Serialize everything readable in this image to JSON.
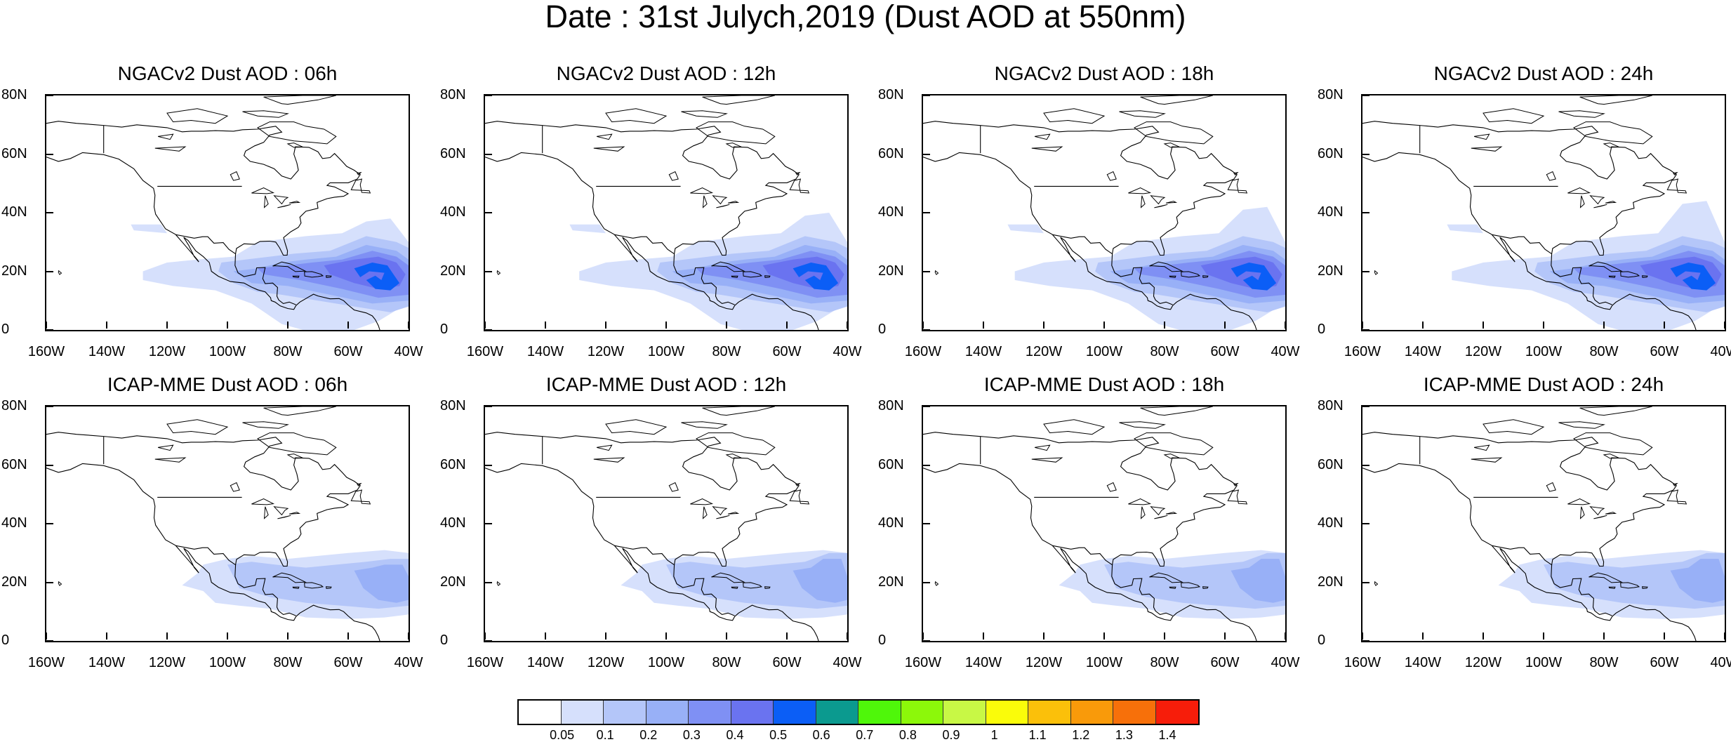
{
  "figure": {
    "title": "Date : 31st Julych,2019 (Dust AOD at 550nm)",
    "y_tick_labels": [
      "80N",
      "60N",
      "40N",
      "20N",
      "0"
    ],
    "x_tick_labels": [
      "160W",
      "140W",
      "120W",
      "100W",
      "80W",
      "60W",
      "40W"
    ]
  },
  "panels": [
    {
      "title": "NGACv2 Dust AOD : 06h",
      "model": "NGACv2",
      "lead_hour": 6
    },
    {
      "title": "NGACv2 Dust AOD : 12h",
      "model": "NGACv2",
      "lead_hour": 12
    },
    {
      "title": "NGACv2 Dust AOD : 18h",
      "model": "NGACv2",
      "lead_hour": 18
    },
    {
      "title": "NGACv2 Dust AOD : 24h",
      "model": "NGACv2",
      "lead_hour": 24
    },
    {
      "title": "ICAP-MME Dust AOD : 06h",
      "model": "ICAP-MME",
      "lead_hour": 6
    },
    {
      "title": "ICAP-MME Dust AOD : 12h",
      "model": "ICAP-MME",
      "lead_hour": 12
    },
    {
      "title": "ICAP-MME Dust AOD : 18h",
      "model": "ICAP-MME",
      "lead_hour": 18
    },
    {
      "title": "ICAP-MME Dust AOD : 24h",
      "model": "ICAP-MME",
      "lead_hour": 24
    }
  ],
  "colorbar": {
    "labels": [
      "0.05",
      "0.1",
      "0.2",
      "0.3",
      "0.4",
      "0.5",
      "0.6",
      "0.7",
      "0.8",
      "0.9",
      "1",
      "1.1",
      "1.2",
      "1.3",
      "1.4"
    ],
    "colors": [
      "#ffffff",
      "#d6e0fc",
      "#b4c6f9",
      "#98b0f7",
      "#7f90f4",
      "#6a73f0",
      "#0b5ef6",
      "#0b9a8f",
      "#4ff70a",
      "#8cf80a",
      "#c8f845",
      "#fafc0a",
      "#fbc00a",
      "#f99a0a",
      "#f7700a",
      "#f71d0a"
    ]
  },
  "chart_data": {
    "type": "heatmap",
    "variable": "Dust AOD at 550nm",
    "date": "31st Julych,2019",
    "lon_range": [
      "160W",
      "40W"
    ],
    "lat_range": [
      "0",
      "80N"
    ],
    "plumes": {
      "NGACv2": [
        {
          "lead_hour": 6,
          "cells": [
            {
              "lon": -90,
              "lat": 20,
              "aod": 0.25
            },
            {
              "lon": -75,
              "lat": 21,
              "aod": 0.45
            },
            {
              "lon": -60,
              "lat": 19,
              "aod": 0.5
            },
            {
              "lon": -48,
              "lat": 17,
              "aod": 0.6
            }
          ]
        },
        {
          "lead_hour": 12,
          "cells": [
            {
              "lon": -90,
              "lat": 20,
              "aod": 0.25
            },
            {
              "lon": -75,
              "lat": 21,
              "aod": 0.45
            },
            {
              "lon": -58,
              "lat": 20,
              "aod": 0.5
            },
            {
              "lon": -50,
              "lat": 19,
              "aod": 0.6
            }
          ]
        },
        {
          "lead_hour": 18,
          "cells": [
            {
              "lon": -90,
              "lat": 22,
              "aod": 0.25
            },
            {
              "lon": -75,
              "lat": 23,
              "aod": 0.45
            },
            {
              "lon": -58,
              "lat": 21,
              "aod": 0.5
            },
            {
              "lon": -52,
              "lat": 20,
              "aod": 0.6
            }
          ]
        },
        {
          "lead_hour": 24,
          "cells": [
            {
              "lon": -90,
              "lat": 21,
              "aod": 0.25
            },
            {
              "lon": -75,
              "lat": 22,
              "aod": 0.45
            },
            {
              "lon": -60,
              "lat": 20,
              "aod": 0.5
            },
            {
              "lon": -53,
              "lat": 19,
              "aod": 0.6
            }
          ]
        }
      ],
      "ICAP-MME": [
        {
          "lead_hour": 6,
          "cells": [
            {
              "lon": -90,
              "lat": 19,
              "aod": 0.15
            },
            {
              "lon": -70,
              "lat": 20,
              "aod": 0.2
            },
            {
              "lon": -45,
              "lat": 20,
              "aod": 0.25
            }
          ]
        },
        {
          "lead_hour": 12,
          "cells": [
            {
              "lon": -90,
              "lat": 18,
              "aod": 0.15
            },
            {
              "lon": -70,
              "lat": 20,
              "aod": 0.2
            },
            {
              "lon": -45,
              "lat": 22,
              "aod": 0.25
            }
          ]
        },
        {
          "lead_hour": 18,
          "cells": [
            {
              "lon": -90,
              "lat": 18,
              "aod": 0.15
            },
            {
              "lon": -70,
              "lat": 20,
              "aod": 0.2
            },
            {
              "lon": -45,
              "lat": 22,
              "aod": 0.25
            }
          ]
        },
        {
          "lead_hour": 24,
          "cells": [
            {
              "lon": -90,
              "lat": 18,
              "aod": 0.15
            },
            {
              "lon": -70,
              "lat": 20,
              "aod": 0.2
            },
            {
              "lon": -50,
              "lat": 20,
              "aod": 0.25
            }
          ]
        }
      ]
    }
  }
}
